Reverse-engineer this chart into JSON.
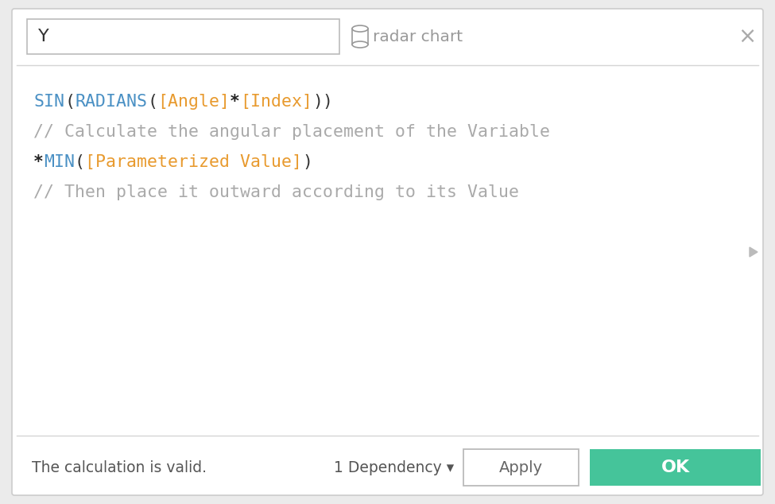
{
  "bg_color": "#ebebeb",
  "dialog_bg": "#ffffff",
  "dialog_border": "#cccccc",
  "title_field_text": "Y",
  "title_field_border": "#bbbbbb",
  "icon_color": "#999999",
  "calc_name": "radar chart",
  "close_x": "×",
  "separator_color": "#d5d5d5",
  "code_line1_parts": [
    {
      "text": "SIN",
      "color": "#4a90c4",
      "bold": false
    },
    {
      "text": "(",
      "color": "#333333",
      "bold": false
    },
    {
      "text": "RADIANS",
      "color": "#4a90c4",
      "bold": false
    },
    {
      "text": "(",
      "color": "#333333",
      "bold": false
    },
    {
      "text": "[Angle]",
      "color": "#e89a2e",
      "bold": false
    },
    {
      "text": "*",
      "color": "#222222",
      "bold": true
    },
    {
      "text": "[Index]",
      "color": "#e89a2e",
      "bold": false
    },
    {
      "text": "))",
      "color": "#333333",
      "bold": false
    }
  ],
  "code_line2": "// Calculate the angular placement of the Variable",
  "code_line2_color": "#aaaaaa",
  "code_line3_parts": [
    {
      "text": "*",
      "color": "#222222",
      "bold": true
    },
    {
      "text": "MIN",
      "color": "#4a90c4",
      "bold": false
    },
    {
      "text": "(",
      "color": "#333333",
      "bold": false
    },
    {
      "text": "[Parameterized Value]",
      "color": "#e89a2e",
      "bold": false
    },
    {
      "text": ")",
      "color": "#333333",
      "bold": false
    }
  ],
  "code_line4": "// Then place it outward according to its Value",
  "code_line4_color": "#aaaaaa",
  "arrow_color": "#aaaaaa",
  "bottom_text": "The calculation is valid.",
  "bottom_text_color": "#555555",
  "dependency_text": "1 Dependency",
  "dependency_color": "#555555",
  "apply_text": "Apply",
  "apply_border": "#bbbbbb",
  "apply_text_color": "#666666",
  "ok_text": "OK",
  "ok_bg": "#45c49a",
  "ok_text_color": "#ffffff",
  "monospace_font": "DejaVu Sans Mono",
  "code_fontsize": 15.5,
  "comment_fontsize": 15.5
}
